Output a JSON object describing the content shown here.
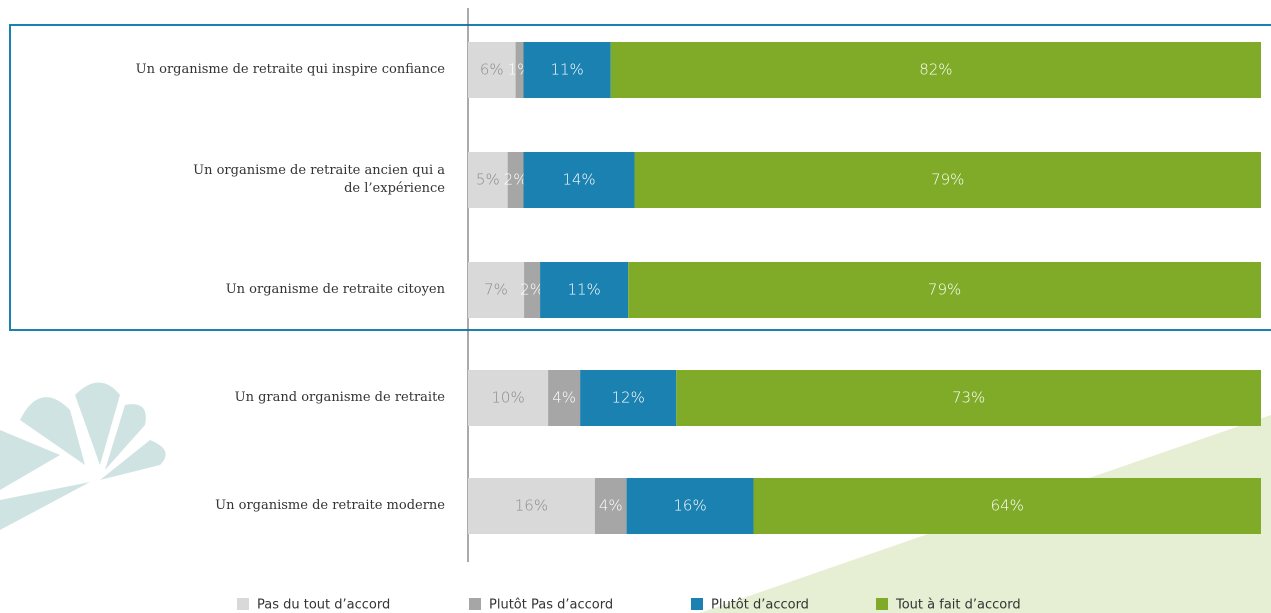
{
  "chart_data": {
    "type": "bar",
    "orientation": "horizontal",
    "stacked": true,
    "categories": [
      "Un organisme de retraite qui inspire confiance",
      "Un organisme de retraite ancien qui a\nde l’expérience",
      "Un organisme de retraite citoyen",
      "Un grand organisme de retraite",
      "Un organisme de retraite moderne"
    ],
    "series": [
      {
        "name": "Pas du tout d’accord",
        "color": "#d9d9d9",
        "label_color": "#8c8c8c",
        "values": [
          6,
          5,
          7,
          10,
          16
        ],
        "value_labels": [
          "6%",
          "5%",
          "7%",
          "10%",
          "16%"
        ]
      },
      {
        "name": "Plutôt Pas d’accord",
        "color": "#a6a6a6",
        "label_color": "#ffffff",
        "values": [
          1,
          2,
          2,
          4,
          4
        ],
        "value_labels": [
          "1%",
          "2%",
          "2%",
          "4%",
          "4%"
        ]
      },
      {
        "name": "Plutôt d’accord",
        "color": "#1a81b0",
        "label_color": "#ffffff",
        "values": [
          11,
          14,
          11,
          12,
          16
        ],
        "value_labels": [
          "11%",
          "14%",
          "11%",
          "12%",
          "16%"
        ]
      },
      {
        "name": "Tout à fait d’accord",
        "color": "#80ab28",
        "label_color": "#ffffff",
        "values": [
          82,
          79,
          79,
          73,
          64
        ],
        "value_labels": [
          "82%",
          "79%",
          "79%",
          "73%",
          "64%"
        ]
      }
    ]
  }
}
